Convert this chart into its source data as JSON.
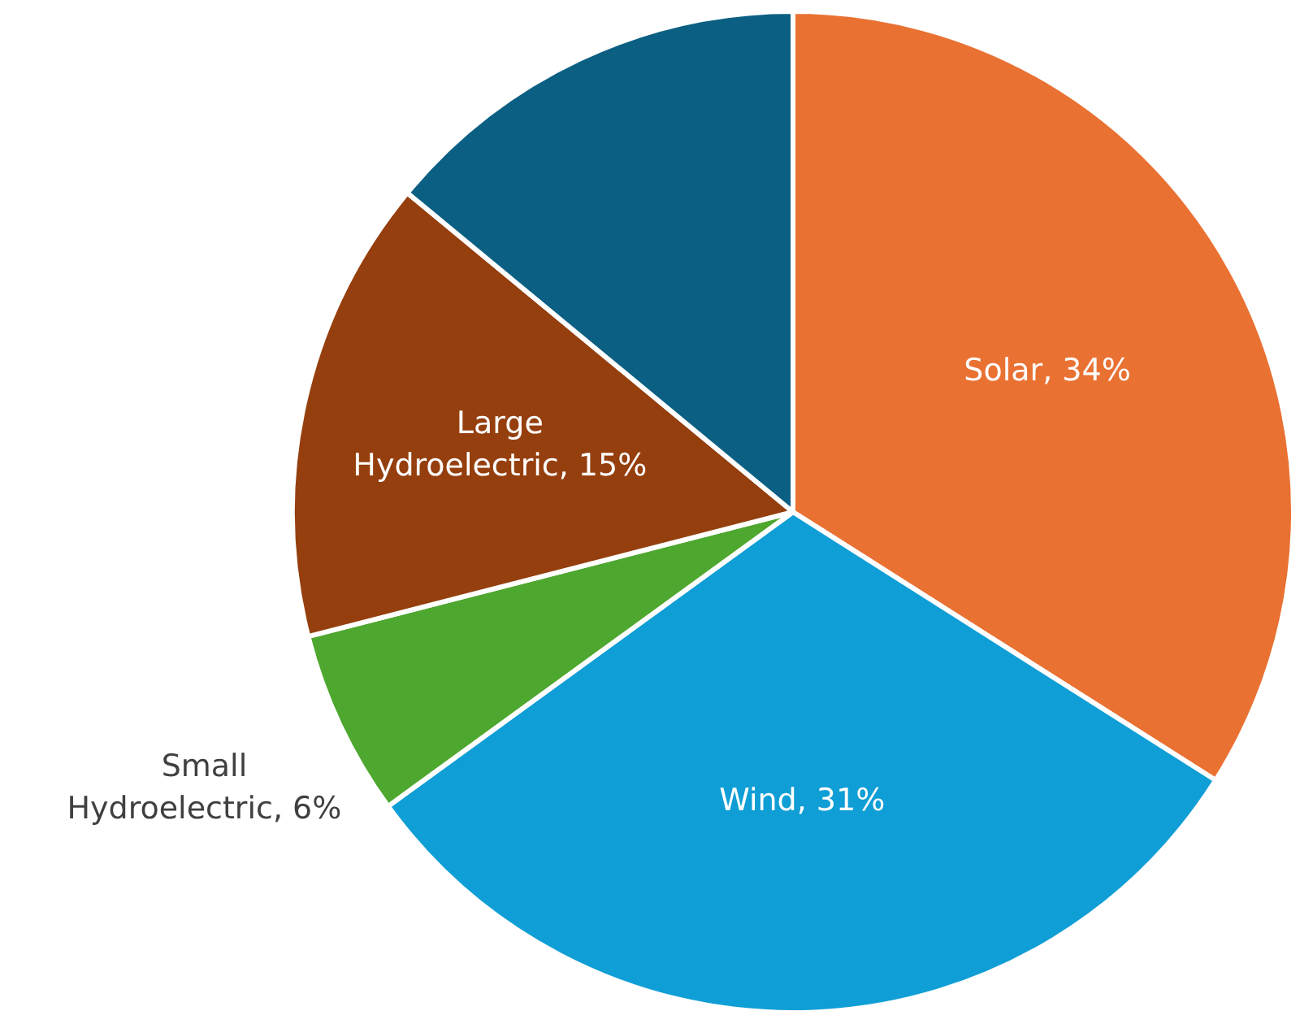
{
  "chart_data": {
    "type": "pie",
    "categories": [
      "Solar",
      "Wind",
      "Small Hydroelectric",
      "Large Hydroelectric",
      null
    ],
    "values": [
      34,
      31,
      6,
      15,
      14
    ],
    "value_labels": [
      "34%",
      "31%",
      "6%",
      "15%",
      null
    ],
    "colors": [
      "#e97132",
      "#0f9ed5",
      "#4ea72e",
      "#953f0e",
      "#0b5f82"
    ]
  }
}
